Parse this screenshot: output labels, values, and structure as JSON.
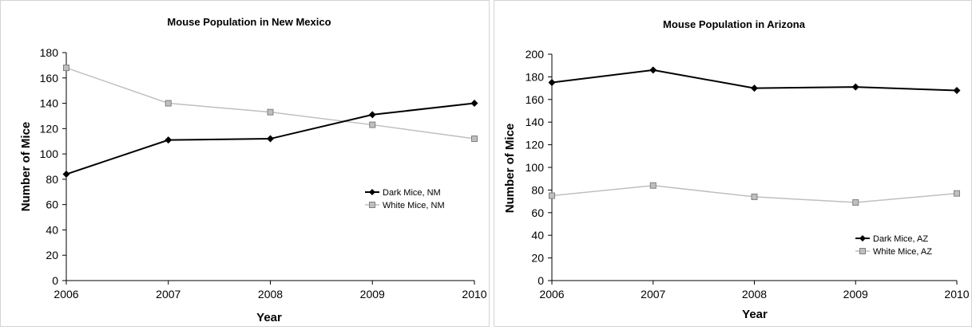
{
  "chart_data": [
    {
      "type": "line",
      "title": "Mouse Population in New Mexico",
      "xlabel": "Year",
      "ylabel": "Number of Mice",
      "x": [
        "2006",
        "2007",
        "2008",
        "2009",
        "2010"
      ],
      "ylim": [
        0,
        180
      ],
      "yticks": [
        0,
        20,
        40,
        60,
        80,
        100,
        120,
        140,
        160,
        180
      ],
      "legend_position": "right",
      "series": [
        {
          "name": "Dark Mice, NM",
          "values": [
            84,
            111,
            112,
            131,
            140
          ],
          "color": "#000000",
          "marker": "diamond"
        },
        {
          "name": "White Mice, NM",
          "values": [
            168,
            140,
            133,
            123,
            112
          ],
          "color": "#bfbfbf",
          "marker": "square"
        }
      ]
    },
    {
      "type": "line",
      "title": "Mouse Population in Arizona",
      "xlabel": "Year",
      "ylabel": "Number of Mice",
      "x": [
        "2006",
        "2007",
        "2008",
        "2009",
        "2010"
      ],
      "ylim": [
        0,
        200
      ],
      "yticks": [
        0,
        20,
        40,
        60,
        80,
        100,
        120,
        140,
        160,
        180,
        200
      ],
      "legend_position": "bottom-right",
      "series": [
        {
          "name": "Dark Mice, AZ",
          "values": [
            175,
            186,
            170,
            171,
            168
          ],
          "color": "#000000",
          "marker": "diamond"
        },
        {
          "name": "White Mice, AZ",
          "values": [
            75,
            84,
            74,
            69,
            77
          ],
          "color": "#bfbfbf",
          "marker": "square"
        }
      ]
    }
  ]
}
